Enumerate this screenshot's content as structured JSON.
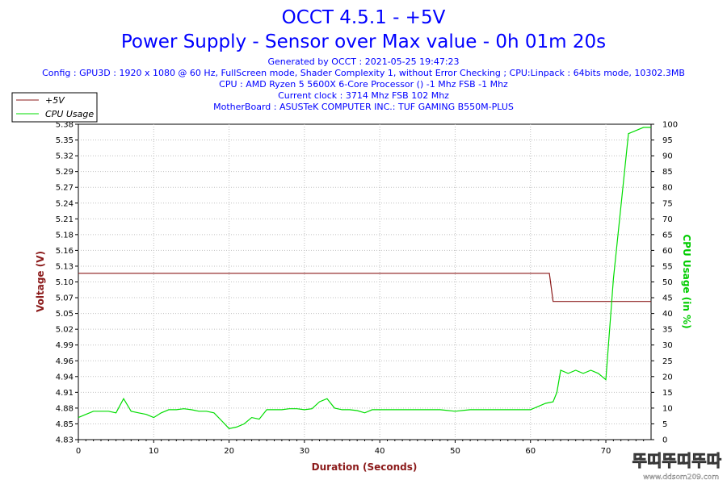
{
  "title": "OCCT 4.5.1 - +5V",
  "subtitle": "Power Supply - Sensor over Max value - 0h 01m 20s",
  "info_lines": [
    "Generated by OCCT : 2021-05-25 19:47:23",
    "Config : GPU3D : 1920 x 1080 @ 60 Hz, FullScreen mode, Shader Complexity 1, without Error Checking ; CPU:Linpack : 64bits mode, 10302.3MB",
    "CPU : AMD Ryzen 5 5600X 6-Core Processor () -1 Mhz FSB -1 Mhz",
    "Current clock : 3714 Mhz FSB 102 Mhz",
    "MotherBoard : ASUSTeK COMPUTER INC.: TUF GAMING B550M-PLUS"
  ],
  "colors": {
    "title": "#0000ff",
    "voltage_series": "#8b1a1a",
    "cpu_series": "#00dd00",
    "grid": "#c0c0c0"
  },
  "chart_data": {
    "type": "line",
    "xlabel": "Duration (Seconds)",
    "ylabel_left": "Voltage (V)",
    "ylabel_right": "CPU Usage (in %)",
    "xlim": [
      0,
      76
    ],
    "ylim_left": [
      4.83,
      5.38
    ],
    "ylim_right": [
      0,
      100
    ],
    "x_ticks": [
      0,
      10,
      20,
      30,
      40,
      50,
      60,
      70
    ],
    "y_ticks_left": [
      "5.38",
      "5.35",
      "5.32",
      "5.29",
      "5.27",
      "5.24",
      "5.21",
      "5.18",
      "5.16",
      "5.13",
      "5.10",
      "5.07",
      "5.05",
      "5.02",
      "4.99",
      "4.96",
      "4.94",
      "4.91",
      "4.88",
      "4.85",
      "4.83"
    ],
    "y_ticks_right": [
      100,
      95,
      90,
      85,
      80,
      75,
      70,
      65,
      60,
      55,
      50,
      45,
      40,
      35,
      30,
      25,
      20,
      15,
      10,
      5,
      0
    ],
    "grid": true,
    "legend_position": "top-left",
    "series": [
      {
        "name": "+5V",
        "axis": "left",
        "x": [
          0,
          62,
          62.5,
          63,
          76
        ],
        "y": [
          5.12,
          5.12,
          5.12,
          5.071,
          5.071
        ]
      },
      {
        "name": "CPU Usage",
        "axis": "right",
        "x": [
          0,
          1,
          2,
          3,
          4,
          5,
          6,
          7,
          8,
          9,
          10,
          11,
          12,
          13,
          14,
          15,
          16,
          17,
          18,
          19,
          20,
          21,
          22,
          23,
          24,
          25,
          26,
          27,
          28,
          29,
          30,
          31,
          32,
          33,
          34,
          35,
          36,
          37,
          38,
          39,
          40,
          42,
          44,
          46,
          48,
          50,
          52,
          54,
          56,
          58,
          60,
          61,
          62,
          63,
          63.5,
          64,
          65,
          66,
          67,
          68,
          69,
          70,
          71,
          72,
          73,
          74,
          75,
          76
        ],
        "y": [
          7,
          8,
          9,
          9,
          9,
          8.5,
          13,
          9,
          8.5,
          8,
          7,
          8.5,
          9.5,
          9.5,
          9.8,
          9.5,
          9,
          9,
          8.5,
          6,
          3.5,
          4,
          5,
          7,
          6.5,
          9.5,
          9.5,
          9.5,
          9.8,
          9.8,
          9.5,
          9.8,
          12,
          13,
          10,
          9.5,
          9.5,
          9.2,
          8.5,
          9.5,
          9.5,
          9.5,
          9.5,
          9.5,
          9.5,
          9,
          9.5,
          9.5,
          9.5,
          9.5,
          9.5,
          10.5,
          11.5,
          12,
          15,
          22,
          21,
          22,
          21,
          22,
          21,
          19,
          51,
          74,
          97,
          98,
          99,
          99
        ]
      }
    ]
  },
  "watermark": {
    "brand": "뚜띠뚜띠뚜따",
    "url": "www.ddsom209.com"
  }
}
